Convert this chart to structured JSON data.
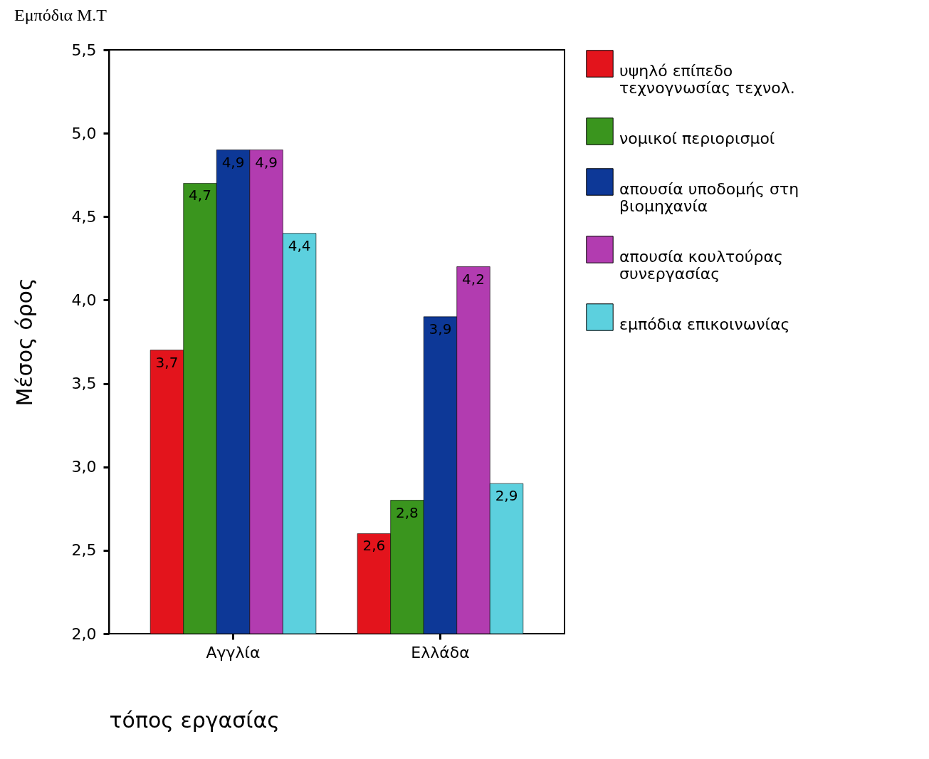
{
  "chart_data": {
    "type": "bar",
    "title": "Εμπόδια Μ.Τ",
    "xlabel": "τόπος εργασίας",
    "ylabel": "Μέσος όρος",
    "categories": [
      "Αγγλία",
      "Ελλάδα"
    ],
    "series": [
      {
        "name": "υψηλό επίπεδο τεχνογνωσίας τεχνολ.",
        "color": "#e3141c",
        "values": [
          3.7,
          2.6
        ],
        "value_labels": [
          "3,7",
          "2,6"
        ]
      },
      {
        "name": "νομικοί περιορισμοί",
        "color": "#3a951e",
        "values": [
          4.7,
          2.8
        ],
        "value_labels": [
          "4,7",
          "2,8"
        ]
      },
      {
        "name": "απουσία υποδομής στη βιομηχανία",
        "color": "#0d3897",
        "values": [
          4.9,
          3.9
        ],
        "value_labels": [
          "4,9",
          "3,9"
        ]
      },
      {
        "name": "απουσία κουλτούρας συνεργασίας",
        "color": "#b23cb0",
        "values": [
          4.9,
          4.2
        ],
        "value_labels": [
          "4,9",
          "4,2"
        ]
      },
      {
        "name": "εμπόδια επικοινωνίας",
        "color": "#5cd0de",
        "values": [
          4.4,
          2.9
        ],
        "value_labels": [
          "4,4",
          "2,9"
        ]
      }
    ],
    "ylim": [
      2.0,
      5.5
    ],
    "yticks": [
      {
        "value": 2.0,
        "label": "2,0"
      },
      {
        "value": 2.5,
        "label": "2,5"
      },
      {
        "value": 3.0,
        "label": "3,0"
      },
      {
        "value": 3.5,
        "label": "3,5"
      },
      {
        "value": 4.0,
        "label": "4,0"
      },
      {
        "value": 4.5,
        "label": "4,5"
      },
      {
        "value": 5.0,
        "label": "5,0"
      },
      {
        "value": 5.5,
        "label": "5,5"
      }
    ],
    "grid": false,
    "legend": "right"
  }
}
